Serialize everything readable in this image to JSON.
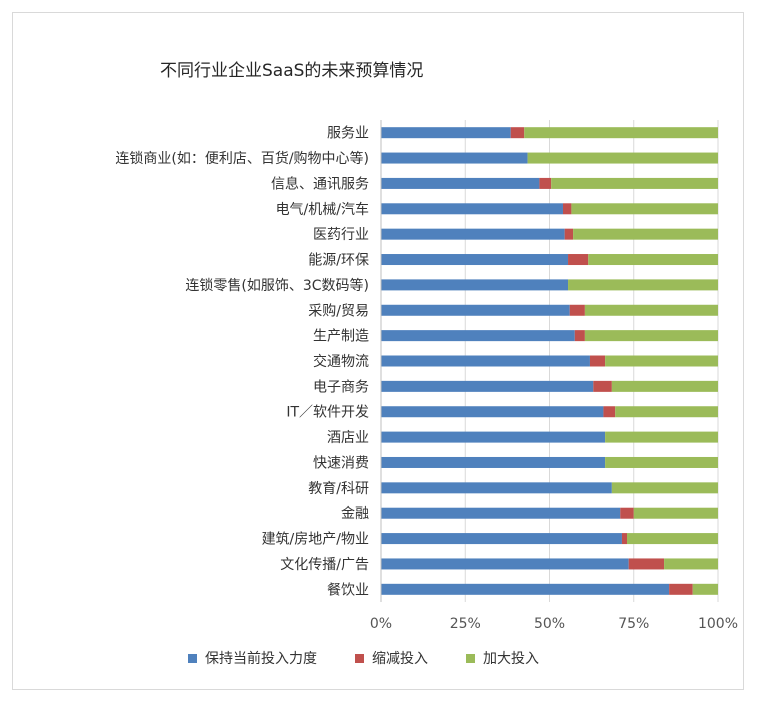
{
  "chart_data": {
    "type": "bar",
    "orientation": "horizontal",
    "stacked": "percent",
    "title": "不同行业企业SaaS的未来预算情况",
    "categories": [
      "服务业",
      "连锁商业(如：便利店、百货/购物中心等)",
      "信息、通讯服务",
      "电气/机械/汽车",
      "医药行业",
      "能源/环保",
      "连锁零售(如服饰、3C数码等)",
      "采购/贸易",
      "生产制造",
      "交通物流",
      "电子商务",
      "IT／软件开发",
      "酒店业",
      "快速消费",
      "教育/科研",
      "金融",
      "建筑/房地产/物业",
      "文化传播/广告",
      "餐饮业"
    ],
    "series": [
      {
        "name": "保持当前投入力度",
        "color": "#4f81bd",
        "values": [
          38.5,
          43.5,
          47,
          54,
          54.5,
          55.5,
          55.5,
          56,
          57.5,
          62,
          63,
          66,
          66.5,
          66.5,
          68.5,
          71,
          71.5,
          73.5,
          85.5
        ]
      },
      {
        "name": "缩减投入",
        "color": "#c0504d",
        "values": [
          4,
          0,
          3.5,
          2.5,
          2.5,
          6,
          0,
          4.5,
          3,
          4.5,
          5.5,
          3.5,
          0,
          0,
          0,
          4,
          1.5,
          10.5,
          7
        ]
      },
      {
        "name": "加大投入",
        "color": "#9bbb59",
        "values": [
          57.5,
          56.5,
          49.5,
          43.5,
          43,
          38.5,
          44.5,
          39.5,
          39.5,
          33.5,
          31.5,
          30.5,
          33.5,
          33.5,
          31.5,
          25,
          27,
          16,
          7.5
        ]
      }
    ],
    "x_ticks": [
      "0%",
      "25%",
      "50%",
      "75%",
      "100%"
    ],
    "xlim": [
      0,
      100
    ],
    "grid": true,
    "legend_position": "bottom"
  }
}
